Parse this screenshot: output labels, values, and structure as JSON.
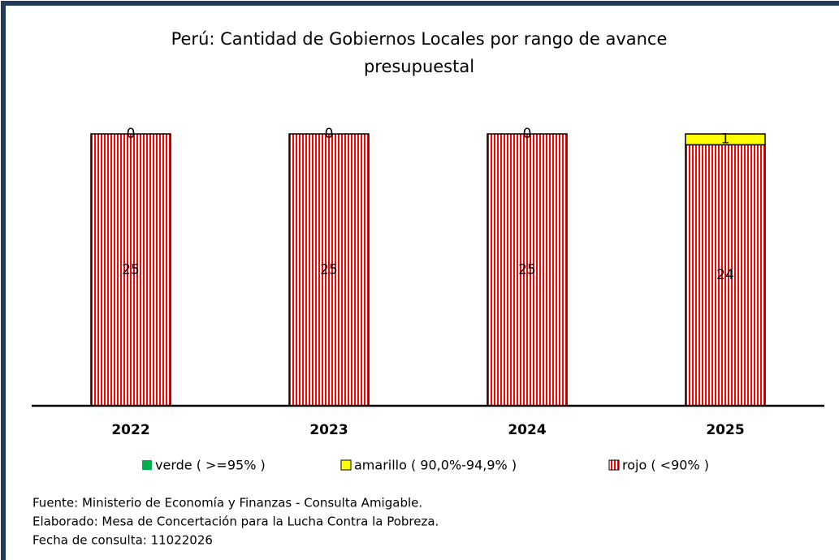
{
  "chart_data": {
    "type": "stacked_bar",
    "title": [
      "Perú: Cantidad de Gobiernos Locales por rango de avance",
      "presupuestal"
    ],
    "categories": [
      "2022",
      "2023",
      "2024",
      "2025"
    ],
    "series": [
      {
        "name": "verde ( >=95% )",
        "color": "#00b050",
        "values": [
          null,
          null,
          null,
          null
        ]
      },
      {
        "name": "amarillo ( 90,0%-94,9% )",
        "color": "#ffff00",
        "values": [
          0,
          0,
          0,
          1
        ]
      },
      {
        "name": "rojo ( <90% )",
        "color": "#ff0000",
        "values": [
          25,
          25,
          25,
          24
        ]
      }
    ],
    "stack_order": [
      2,
      1,
      0
    ],
    "ylim": [
      0,
      25
    ],
    "notes": [
      "Fuente: Ministerio de Economía y Finanzas - Consulta Amigable.",
      "Elaborado: Mesa de Concertación para la Lucha Contra la Pobreza.",
      "Fecha de consulta: 11022026"
    ]
  }
}
